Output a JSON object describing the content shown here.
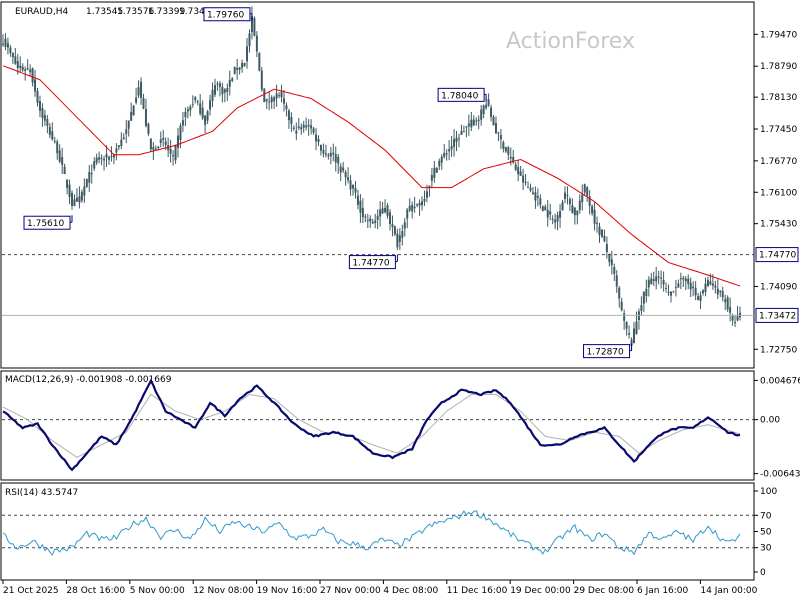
{
  "colors": {
    "candle": "#3d5a63",
    "ma": "#e00000",
    "macd": "#0a0a6e",
    "macd_signal": "#b0b0b0",
    "rsi": "#3399cc",
    "border": "#000000",
    "dashed": "#444444",
    "current_line": "#b0b0b0",
    "label_border": "#000080"
  },
  "watermark": "ActionForex",
  "header": {
    "symbol": "EURAUD,H4",
    "open": "1.73545",
    "high": "1.73576",
    "low": "1.73399",
    "close": "1.73472"
  },
  "chart_data": [
    {
      "type": "candlestick",
      "name": "price",
      "ylim": [
        1.7235,
        1.8016
      ],
      "y_ticks": [
        "1.79470",
        "1.78790",
        "1.78130",
        "1.77450",
        "1.76770",
        "1.76100",
        "1.75430",
        "1.74090",
        "1.72750"
      ],
      "x_labels": [
        "21 Oct 2025",
        "28 Oct 16:00",
        "5 Nov 00:00",
        "12 Nov 08:00",
        "19 Nov 16:00",
        "27 Nov 00:00",
        "4 Dec 08:00",
        "11 Dec 16:00",
        "19 Dec 00:00",
        "29 Dec 08:00",
        "6 Jan 16:00",
        "14 Jan 00:00"
      ],
      "waypoints": [
        [
          0,
          1.7935
        ],
        [
          6,
          1.7875
        ],
        [
          11,
          1.787
        ],
        [
          15,
          1.7785
        ],
        [
          22,
          1.77
        ],
        [
          28,
          1.7585
        ],
        [
          31,
          1.7595
        ],
        [
          34,
          1.7635
        ],
        [
          38,
          1.768
        ],
        [
          44,
          1.7685
        ],
        [
          50,
          1.774
        ],
        [
          55,
          1.784
        ],
        [
          60,
          1.77
        ],
        [
          65,
          1.772
        ],
        [
          69,
          1.768
        ],
        [
          73,
          1.777
        ],
        [
          78,
          1.781
        ],
        [
          82,
          1.776
        ],
        [
          86,
          1.7845
        ],
        [
          90,
          1.782
        ],
        [
          94,
          1.787
        ],
        [
          98,
          1.789
        ],
        [
          101,
          1.7978
        ],
        [
          106,
          1.78
        ],
        [
          112,
          1.782
        ],
        [
          118,
          1.774
        ],
        [
          124,
          1.7755
        ],
        [
          130,
          1.7695
        ],
        [
          134,
          1.769
        ],
        [
          138,
          1.765
        ],
        [
          142,
          1.7615
        ],
        [
          146,
          1.756
        ],
        [
          150,
          1.7545
        ],
        [
          155,
          1.758
        ],
        [
          160,
          1.75
        ],
        [
          164,
          1.757
        ],
        [
          170,
          1.759
        ],
        [
          176,
          1.767
        ],
        [
          182,
          1.771
        ],
        [
          188,
          1.775
        ],
        [
          193,
          1.777
        ],
        [
          196,
          1.7804
        ],
        [
          200,
          1.774
        ],
        [
          205,
          1.769
        ],
        [
          210,
          1.764
        ],
        [
          216,
          1.76
        ],
        [
          220,
          1.757
        ],
        [
          224,
          1.7545
        ],
        [
          228,
          1.761
        ],
        [
          232,
          1.756
        ],
        [
          236,
          1.762
        ],
        [
          240,
          1.755
        ],
        [
          244,
          1.75
        ],
        [
          248,
          1.743
        ],
        [
          252,
          1.733
        ],
        [
          255,
          1.7287
        ],
        [
          258,
          1.736
        ],
        [
          262,
          1.742
        ],
        [
          266,
          1.743
        ],
        [
          270,
          1.739
        ],
        [
          274,
          1.742
        ],
        [
          278,
          1.742
        ],
        [
          282,
          1.738
        ],
        [
          286,
          1.742
        ],
        [
          290,
          1.74
        ],
        [
          293,
          1.738
        ],
        [
          296,
          1.733
        ],
        [
          299,
          1.7347
        ]
      ],
      "ma_points": [
        [
          0,
          1.788
        ],
        [
          15,
          1.785
        ],
        [
          30,
          1.777
        ],
        [
          45,
          1.769
        ],
        [
          55,
          1.769
        ],
        [
          70,
          1.771
        ],
        [
          85,
          1.774
        ],
        [
          95,
          1.779
        ],
        [
          110,
          1.783
        ],
        [
          125,
          1.781
        ],
        [
          140,
          1.776
        ],
        [
          155,
          1.77
        ],
        [
          170,
          1.762
        ],
        [
          182,
          1.762
        ],
        [
          195,
          1.766
        ],
        [
          210,
          1.768
        ],
        [
          225,
          1.764
        ],
        [
          240,
          1.759
        ],
        [
          255,
          1.752
        ],
        [
          270,
          1.746
        ],
        [
          285,
          1.7435
        ],
        [
          299,
          1.741
        ]
      ],
      "annotations": [
        {
          "text": "1.75610",
          "i": 28,
          "value": 1.7561,
          "pos": "below"
        },
        {
          "text": "1.79760",
          "i": 101,
          "value": 1.7976,
          "pos": "above"
        },
        {
          "text": "1.74770",
          "i": 160,
          "value": 1.7477,
          "pos": "below"
        },
        {
          "text": "1.78040",
          "i": 196,
          "value": 1.7804,
          "pos": "above"
        },
        {
          "text": "1.72870",
          "i": 255,
          "value": 1.7287,
          "pos": "below"
        }
      ],
      "level_line": {
        "value": 1.7477,
        "label": "1.74770"
      },
      "current": {
        "value": 1.73472,
        "label": "1.73472"
      }
    },
    {
      "type": "line",
      "name": "MACD",
      "title": "MACD(12,26,9) -0.001908 -0.001669",
      "ylim": [
        -0.0072,
        0.0058
      ],
      "y_ticks": [
        "0.004676",
        "0.00",
        "-0.006436"
      ],
      "macd_points": [
        [
          0,
          0.001
        ],
        [
          8,
          -0.001
        ],
        [
          14,
          -0.0005
        ],
        [
          20,
          -0.003
        ],
        [
          28,
          -0.006
        ],
        [
          34,
          -0.004
        ],
        [
          40,
          -0.002
        ],
        [
          46,
          -0.003
        ],
        [
          52,
          0.0
        ],
        [
          60,
          0.0046
        ],
        [
          66,
          0.001
        ],
        [
          72,
          0.0
        ],
        [
          78,
          -0.001
        ],
        [
          84,
          0.002
        ],
        [
          90,
          0.0005
        ],
        [
          96,
          0.0025
        ],
        [
          103,
          0.004
        ],
        [
          110,
          0.002
        ],
        [
          118,
          -0.0005
        ],
        [
          126,
          -0.002
        ],
        [
          134,
          -0.0015
        ],
        [
          142,
          -0.002
        ],
        [
          150,
          -0.004
        ],
        [
          158,
          -0.0045
        ],
        [
          166,
          -0.0035
        ],
        [
          172,
          0.0
        ],
        [
          178,
          0.002
        ],
        [
          186,
          0.0035
        ],
        [
          194,
          0.003
        ],
        [
          200,
          0.0035
        ],
        [
          206,
          0.002
        ],
        [
          212,
          -0.0005
        ],
        [
          218,
          -0.003
        ],
        [
          226,
          -0.003
        ],
        [
          232,
          -0.002
        ],
        [
          238,
          -0.0015
        ],
        [
          244,
          -0.001
        ],
        [
          250,
          -0.003
        ],
        [
          256,
          -0.005
        ],
        [
          262,
          -0.003
        ],
        [
          268,
          -0.0015
        ],
        [
          274,
          -0.001
        ],
        [
          280,
          -0.001
        ],
        [
          286,
          0.0003
        ],
        [
          290,
          -0.0005
        ],
        [
          294,
          -0.0015
        ],
        [
          299,
          -0.0019
        ]
      ],
      "signal_points": [
        [
          0,
          0.0015
        ],
        [
          10,
          0.0
        ],
        [
          20,
          -0.0025
        ],
        [
          30,
          -0.0045
        ],
        [
          40,
          -0.003
        ],
        [
          50,
          -0.0015
        ],
        [
          60,
          0.003
        ],
        [
          70,
          0.001
        ],
        [
          80,
          0.0
        ],
        [
          90,
          0.001
        ],
        [
          100,
          0.003
        ],
        [
          110,
          0.0025
        ],
        [
          120,
          0.0
        ],
        [
          130,
          -0.0015
        ],
        [
          140,
          -0.0018
        ],
        [
          150,
          -0.003
        ],
        [
          160,
          -0.004
        ],
        [
          170,
          -0.002
        ],
        [
          180,
          0.001
        ],
        [
          190,
          0.003
        ],
        [
          200,
          0.003
        ],
        [
          210,
          0.001
        ],
        [
          220,
          -0.002
        ],
        [
          230,
          -0.0025
        ],
        [
          240,
          -0.0015
        ],
        [
          250,
          -0.002
        ],
        [
          258,
          -0.004
        ],
        [
          266,
          -0.0025
        ],
        [
          276,
          -0.0012
        ],
        [
          286,
          -0.0006
        ],
        [
          299,
          -0.0017
        ]
      ]
    },
    {
      "type": "line",
      "name": "RSI",
      "title": "RSI(14) 43.5747",
      "ylim": [
        0,
        100
      ],
      "y_ticks": [
        "100",
        "70",
        "50",
        "30",
        "0"
      ],
      "levels": [
        70,
        30
      ],
      "rsi_points": [
        [
          0,
          45
        ],
        [
          6,
          30
        ],
        [
          12,
          38
        ],
        [
          20,
          25
        ],
        [
          28,
          30
        ],
        [
          34,
          48
        ],
        [
          40,
          40
        ],
        [
          46,
          42
        ],
        [
          52,
          58
        ],
        [
          58,
          66
        ],
        [
          64,
          44
        ],
        [
          70,
          52
        ],
        [
          76,
          40
        ],
        [
          82,
          65
        ],
        [
          88,
          50
        ],
        [
          94,
          62
        ],
        [
          100,
          55
        ],
        [
          106,
          50
        ],
        [
          112,
          60
        ],
        [
          118,
          42
        ],
        [
          124,
          44
        ],
        [
          130,
          52
        ],
        [
          136,
          38
        ],
        [
          142,
          35
        ],
        [
          148,
          30
        ],
        [
          154,
          40
        ],
        [
          160,
          33
        ],
        [
          166,
          42
        ],
        [
          172,
          55
        ],
        [
          178,
          62
        ],
        [
          184,
          68
        ],
        [
          190,
          75
        ],
        [
          196,
          68
        ],
        [
          202,
          55
        ],
        [
          208,
          42
        ],
        [
          214,
          32
        ],
        [
          220,
          25
        ],
        [
          226,
          42
        ],
        [
          232,
          55
        ],
        [
          238,
          40
        ],
        [
          244,
          48
        ],
        [
          250,
          30
        ],
        [
          256,
          25
        ],
        [
          262,
          48
        ],
        [
          268,
          40
        ],
        [
          274,
          50
        ],
        [
          280,
          38
        ],
        [
          286,
          58
        ],
        [
          290,
          45
        ],
        [
          294,
          35
        ],
        [
          299,
          44
        ]
      ]
    }
  ]
}
